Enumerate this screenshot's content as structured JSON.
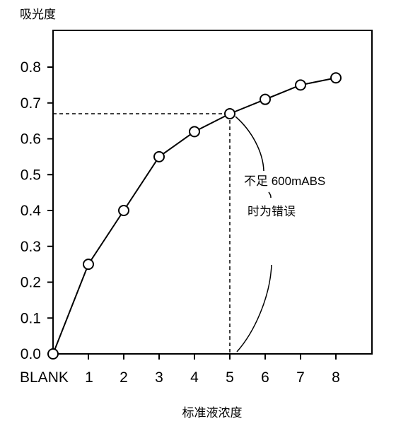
{
  "chart_data": {
    "type": "line",
    "ylabel": "吸光度",
    "xlabel": "标准液浓度",
    "categories": [
      "BLANK",
      "1",
      "2",
      "3",
      "4",
      "5",
      "6",
      "7",
      "8"
    ],
    "values": [
      0.0,
      0.25,
      0.4,
      0.55,
      0.62,
      0.67,
      0.71,
      0.75,
      0.77
    ],
    "yticks": [
      "0.0",
      "0.1",
      "0.2",
      "0.3",
      "0.4",
      "0.5",
      "0.6",
      "0.7",
      "0.8"
    ],
    "ylim": [
      0,
      0.8
    ],
    "grid": false,
    "reference_point": {
      "category": "5",
      "value": 0.67
    },
    "annotation": {
      "line1": "不足 600mABS",
      "line2": "时为错误"
    }
  }
}
